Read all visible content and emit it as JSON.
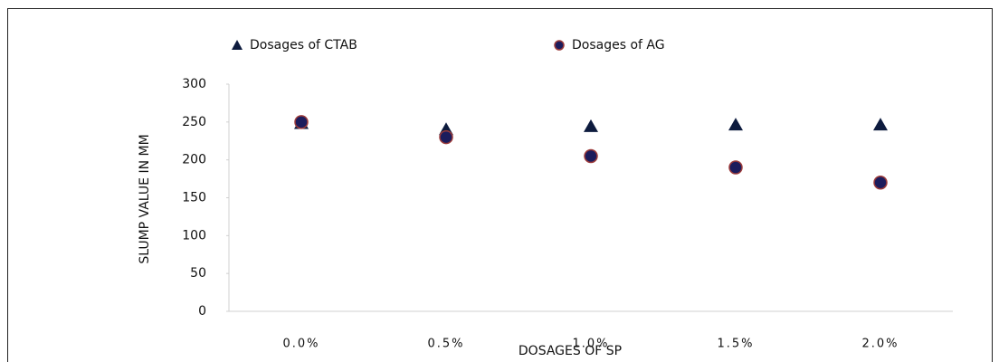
{
  "chart_data": {
    "type": "scatter",
    "x_label": "DOSAGES OF SP",
    "y_label": "SLUMP VALUE IN MM",
    "categories": [
      "0.0%",
      "0.5%",
      "1.0%",
      "1.5%",
      "2.0%"
    ],
    "series": [
      {
        "name": "Dosages of CTAB",
        "color": "#0d1b3e",
        "marker": "triangle",
        "values": [
          248,
          240,
          244,
          246,
          246
        ]
      },
      {
        "name": "Dosages of AG",
        "color": "#1c1c5c",
        "edge_color": "#9b3a3a",
        "marker": "circle",
        "values": [
          250,
          230,
          205,
          190,
          170
        ]
      }
    ],
    "ylim": [
      0,
      300
    ],
    "yticks": [
      0,
      50,
      100,
      150,
      200,
      250,
      300
    ],
    "grid": false
  }
}
